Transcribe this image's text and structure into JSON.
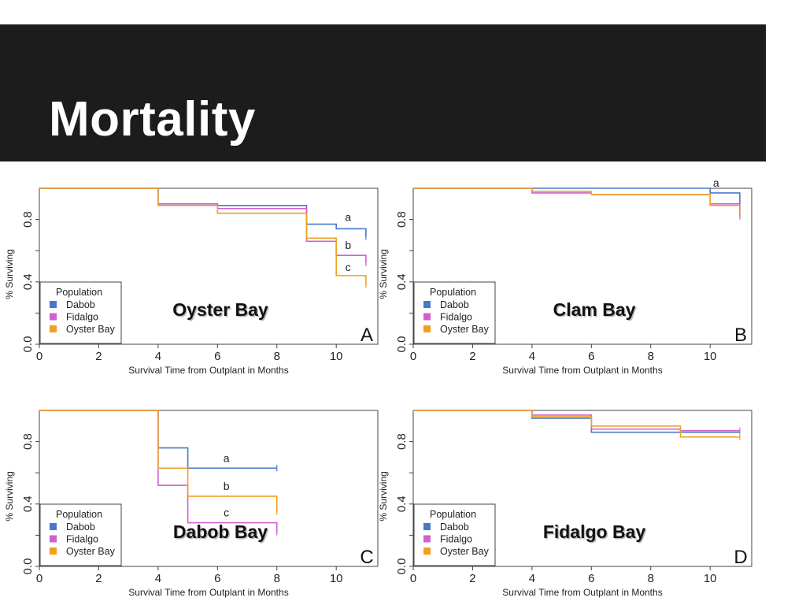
{
  "slide": {
    "title": "Mortality"
  },
  "colors": {
    "Dabob": "#4a78c8",
    "Fidalgo": "#d060d0",
    "Oyster Bay": "#f0a020",
    "axis": "#444444"
  },
  "chart_data": [
    {
      "type": "line",
      "panel_letter": "A",
      "site_label": "Oyster Bay",
      "xlabel": "Survival Time from Outplant in Months",
      "ylabel": "% Surviving",
      "xlim": [
        0,
        11.4
      ],
      "ylim": [
        0,
        1.0
      ],
      "xticks": [
        0,
        2,
        4,
        6,
        8,
        10
      ],
      "yticks": [
        0.0,
        0.4,
        0.8
      ],
      "ytick_labels": [
        "0.0",
        "0.4",
        "0.8"
      ],
      "legend": {
        "title": "Population",
        "position": "bottom-left",
        "entries": [
          "Dabob",
          "Fidalgo",
          "Oyster Bay"
        ]
      },
      "series": [
        {
          "name": "Dabob",
          "color": "#4a78c8",
          "x": [
            0,
            4,
            6,
            9,
            10,
            11
          ],
          "y": [
            1.0,
            0.9,
            0.89,
            0.77,
            0.74,
            0.69
          ]
        },
        {
          "name": "Fidalgo",
          "color": "#d060d0",
          "x": [
            0,
            4,
            6,
            9,
            10,
            11
          ],
          "y": [
            1.0,
            0.9,
            0.87,
            0.66,
            0.57,
            0.52
          ]
        },
        {
          "name": "Oyster Bay",
          "color": "#f0a020",
          "x": [
            0,
            4,
            6,
            9,
            10,
            11
          ],
          "y": [
            1.0,
            0.89,
            0.84,
            0.68,
            0.44,
            0.38
          ]
        }
      ],
      "annotations": [
        {
          "text": "a",
          "x": 10.4,
          "y": 0.79
        },
        {
          "text": "b",
          "x": 10.4,
          "y": 0.61
        },
        {
          "text": "c",
          "x": 10.4,
          "y": 0.47
        }
      ]
    },
    {
      "type": "line",
      "panel_letter": "B",
      "site_label": "Clam Bay",
      "xlabel": "Survival Time from Outplant in Months",
      "ylabel": "% Surviving",
      "xlim": [
        0,
        11.4
      ],
      "ylim": [
        0,
        1.0
      ],
      "xticks": [
        0,
        2,
        4,
        6,
        8,
        10
      ],
      "yticks": [
        0.0,
        0.4,
        0.8
      ],
      "ytick_labels": [
        "0.0",
        "0.4",
        "0.8"
      ],
      "legend": {
        "title": "Population",
        "position": "bottom-left",
        "entries": [
          "Dabob",
          "Fidalgo",
          "Oyster Bay"
        ]
      },
      "series": [
        {
          "name": "Dabob",
          "color": "#4a78c8",
          "x": [
            0,
            4,
            6,
            10,
            11
          ],
          "y": [
            1.0,
            1.0,
            1.0,
            0.97,
            0.88
          ]
        },
        {
          "name": "Fidalgo",
          "color": "#d060d0",
          "x": [
            0,
            4,
            6,
            10,
            11
          ],
          "y": [
            1.0,
            0.97,
            0.96,
            0.9,
            0.82
          ]
        },
        {
          "name": "Oyster Bay",
          "color": "#f0a020",
          "x": [
            0,
            4,
            6,
            10,
            11
          ],
          "y": [
            1.0,
            0.98,
            0.96,
            0.89,
            0.85
          ]
        }
      ],
      "annotations": [
        {
          "text": "a",
          "x": 10.2,
          "y": 1.01
        }
      ]
    },
    {
      "type": "line",
      "panel_letter": "C",
      "site_label": "Dabob Bay",
      "xlabel": "Survival Time from Outplant in Months",
      "ylabel": "% Surviving",
      "xlim": [
        0,
        11.4
      ],
      "ylim": [
        0,
        1.0
      ],
      "xticks": [
        0,
        2,
        4,
        6,
        8,
        10
      ],
      "yticks": [
        0.0,
        0.4,
        0.8
      ],
      "ytick_labels": [
        "0.0",
        "0.4",
        "0.8"
      ],
      "legend": {
        "title": "Population",
        "position": "bottom-left",
        "entries": [
          "Dabob",
          "Fidalgo",
          "Oyster Bay"
        ]
      },
      "series": [
        {
          "name": "Dabob",
          "color": "#4a78c8",
          "x": [
            0,
            4,
            5,
            8
          ],
          "y": [
            1.0,
            0.76,
            0.63,
            0.63
          ]
        },
        {
          "name": "Fidalgo",
          "color": "#d060d0",
          "x": [
            0,
            4,
            5,
            8
          ],
          "y": [
            1.0,
            0.52,
            0.28,
            0.22
          ]
        },
        {
          "name": "Oyster Bay",
          "color": "#f0a020",
          "x": [
            0,
            4,
            5,
            8
          ],
          "y": [
            1.0,
            0.63,
            0.45,
            0.35
          ]
        }
      ],
      "annotations": [
        {
          "text": "a",
          "x": 6.3,
          "y": 0.67
        },
        {
          "text": "b",
          "x": 6.3,
          "y": 0.49
        },
        {
          "text": "c",
          "x": 6.3,
          "y": 0.32
        }
      ]
    },
    {
      "type": "line",
      "panel_letter": "D",
      "site_label": "Fidalgo Bay",
      "xlabel": "Survival Time from Outplant in Months",
      "ylabel": "% Surviving",
      "xlim": [
        0,
        11.4
      ],
      "ylim": [
        0,
        1.0
      ],
      "xticks": [
        0,
        2,
        4,
        6,
        8,
        10
      ],
      "yticks": [
        0.0,
        0.4,
        0.8
      ],
      "ytick_labels": [
        "0.0",
        "0.4",
        "0.8"
      ],
      "legend": {
        "title": "Population",
        "position": "bottom-left",
        "entries": [
          "Dabob",
          "Fidalgo",
          "Oyster Bay"
        ]
      },
      "series": [
        {
          "name": "Dabob",
          "color": "#4a78c8",
          "x": [
            0,
            4,
            6,
            9,
            11
          ],
          "y": [
            1.0,
            0.95,
            0.86,
            0.86,
            0.86
          ]
        },
        {
          "name": "Fidalgo",
          "color": "#d060d0",
          "x": [
            0,
            4,
            6,
            9,
            11
          ],
          "y": [
            1.0,
            0.97,
            0.88,
            0.87,
            0.87
          ]
        },
        {
          "name": "Oyster Bay",
          "color": "#f0a020",
          "x": [
            0,
            4,
            6,
            9,
            11
          ],
          "y": [
            1.0,
            0.96,
            0.9,
            0.83,
            0.83
          ]
        }
      ],
      "annotations": []
    }
  ]
}
